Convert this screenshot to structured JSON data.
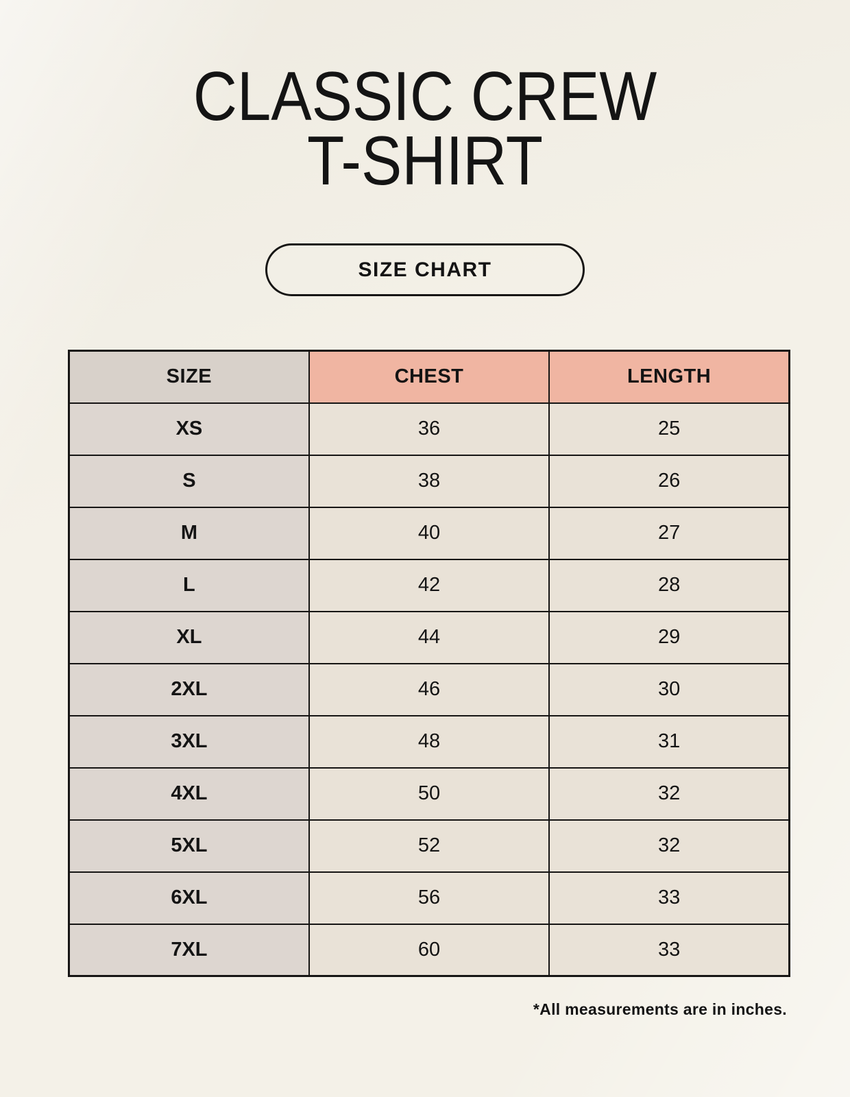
{
  "title": {
    "line1": "CLASSIC CREW",
    "line2": "T-SHIRT"
  },
  "badge": {
    "label": "SIZE CHART"
  },
  "footnote": "*All measurements are in inches.",
  "colors": {
    "background": "#f4f1e8",
    "header_size_bg": "#d8d1ca",
    "header_measure_bg": "#f0b5a2",
    "row_label_bg": "#ddd6d0",
    "row_value_bg": "#e9e2d7",
    "border": "#161514",
    "text": "#141414"
  },
  "chart_data": {
    "type": "table",
    "title": "CLASSIC CREW T-SHIRT",
    "subtitle": "SIZE CHART",
    "units": "inches",
    "columns": [
      "SIZE",
      "CHEST",
      "LENGTH"
    ],
    "rows": [
      {
        "size": "XS",
        "chest": "36",
        "length": "25"
      },
      {
        "size": "S",
        "chest": "38",
        "length": "26"
      },
      {
        "size": "M",
        "chest": "40",
        "length": "27"
      },
      {
        "size": "L",
        "chest": "42",
        "length": "28"
      },
      {
        "size": "XL",
        "chest": "44",
        "length": "29"
      },
      {
        "size": "2XL",
        "chest": "46",
        "length": "30"
      },
      {
        "size": "3XL",
        "chest": "48",
        "length": "31"
      },
      {
        "size": "4XL",
        "chest": "50",
        "length": "32"
      },
      {
        "size": "5XL",
        "chest": "52",
        "length": "32"
      },
      {
        "size": "6XL",
        "chest": "56",
        "length": "33"
      },
      {
        "size": "7XL",
        "chest": "60",
        "length": "33"
      }
    ]
  }
}
